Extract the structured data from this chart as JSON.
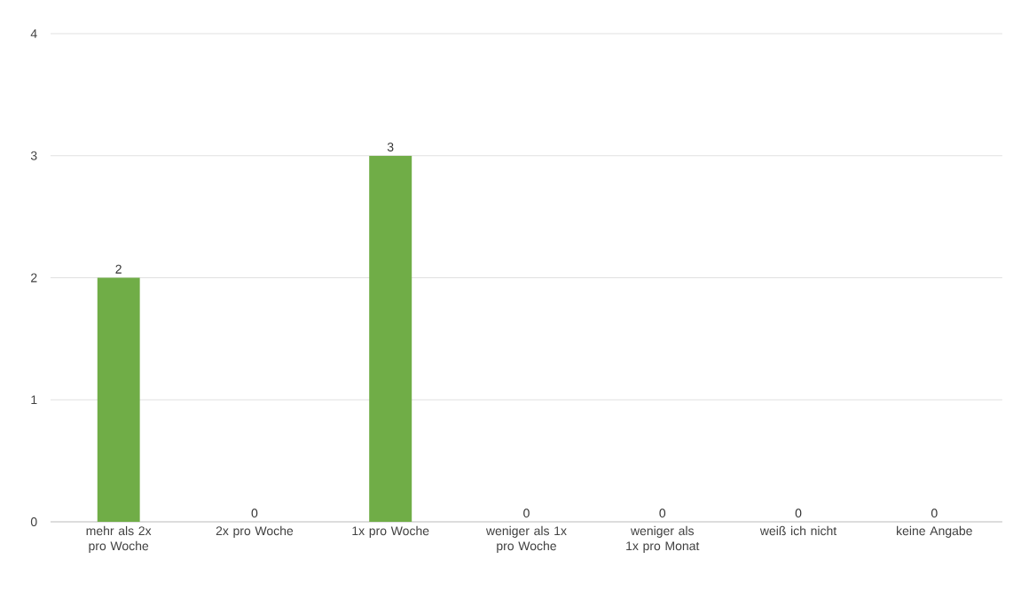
{
  "chart_data": {
    "type": "bar",
    "categories": [
      "mehr als 2x pro Woche",
      "2x pro Woche",
      "1x pro Woche",
      "weniger als 1x pro Woche",
      "weniger als 1x pro Monat",
      "weiß ich nicht",
      "keine Angabe"
    ],
    "values": [
      2,
      0,
      3,
      0,
      0,
      0,
      0
    ],
    "color": "#70ad47",
    "ylim": [
      0,
      4
    ],
    "yticks": [
      0,
      1,
      2,
      3,
      4
    ],
    "grid": "y",
    "data_labels": true
  }
}
